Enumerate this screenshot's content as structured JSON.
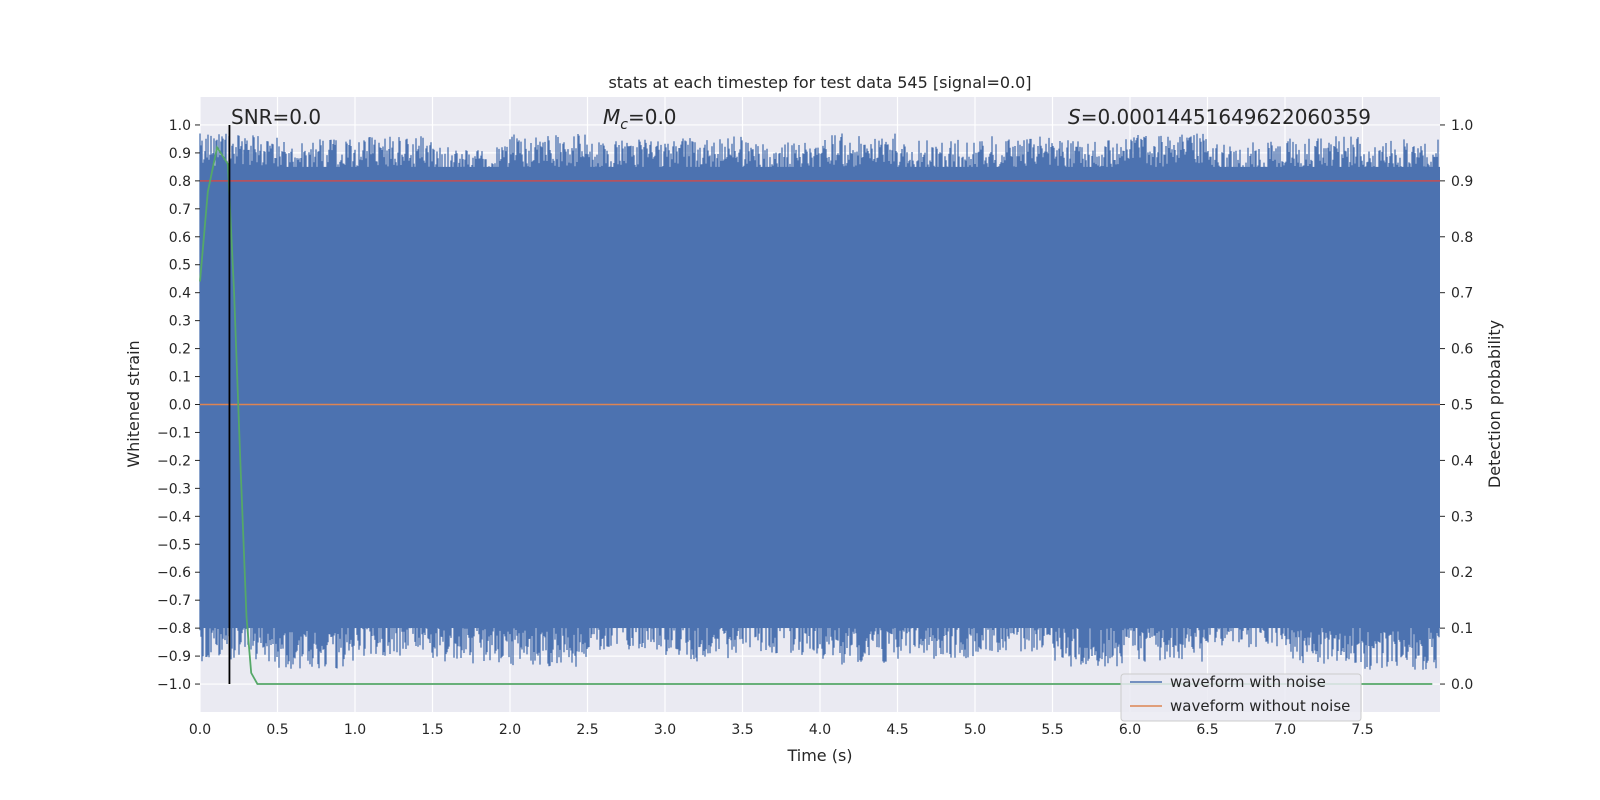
{
  "chart_data": {
    "type": "line",
    "title": "stats at each timestep for test data 545 [signal=0.0]",
    "xlabel": "Time (s)",
    "ylabel": "Whitened strain",
    "y2label": "Detection probability",
    "xlim": [
      0.0,
      8.0
    ],
    "ylim": [
      -1.1,
      1.1
    ],
    "y2lim": [
      -0.05,
      1.05
    ],
    "x_ticks": [
      0.0,
      0.5,
      1.0,
      1.5,
      2.0,
      2.5,
      3.0,
      3.5,
      4.0,
      4.5,
      5.0,
      5.5,
      6.0,
      6.5,
      7.0,
      7.5
    ],
    "x_tick_labels": [
      "0.0",
      "0.5",
      "1.0",
      "1.5",
      "2.0",
      "2.5",
      "3.0",
      "3.5",
      "4.0",
      "4.5",
      "5.0",
      "5.5",
      "6.0",
      "6.5",
      "7.0",
      "7.5"
    ],
    "y_ticks": [
      1.0,
      0.9,
      0.8,
      0.7,
      0.6,
      0.5,
      0.4,
      0.3,
      0.2,
      0.1,
      0.0,
      -0.1,
      -0.2,
      -0.3,
      -0.4,
      -0.5,
      -0.6,
      -0.7,
      -0.8,
      -0.9,
      -1.0
    ],
    "y_tick_labels": [
      "1.0",
      "0.9",
      "0.8",
      "0.7",
      "0.6",
      "0.5",
      "0.4",
      "0.3",
      "0.2",
      "0.1",
      "0.0",
      "−0.1",
      "−0.2",
      "−0.3",
      "−0.4",
      "−0.5",
      "−0.6",
      "−0.7",
      "−0.8",
      "−0.9",
      "−1.0"
    ],
    "y2_ticks": [
      1.0,
      0.9,
      0.8,
      0.7,
      0.6,
      0.5,
      0.4,
      0.3,
      0.2,
      0.1,
      0.0
    ],
    "y2_tick_labels": [
      "1.0",
      "0.9",
      "0.8",
      "0.7",
      "0.6",
      "0.5",
      "0.4",
      "0.3",
      "0.2",
      "0.1",
      "0.0"
    ],
    "grid": true,
    "series": [
      {
        "name": "waveform with noise",
        "color": "#4c72b0",
        "axis": "left",
        "description_values": "dense noise filling approx. -1.0 to 1.0",
        "envelope_upper": [
          0.97,
          0.95,
          0.96,
          0.93,
          0.97,
          0.95,
          0.96,
          0.94,
          0.97,
          0.95,
          0.96,
          0.95,
          0.97,
          0.94,
          0.96,
          0.95
        ],
        "envelope_lower": [
          -0.92,
          -0.95,
          -0.9,
          -0.93,
          -0.94,
          -0.88,
          -0.92,
          -0.9,
          -0.93,
          -0.91,
          -0.89,
          -0.94,
          -0.92,
          -0.87,
          -0.93,
          -0.95
        ]
      },
      {
        "name": "waveform without noise",
        "color": "#dd8452",
        "axis": "left",
        "x": [
          0.0,
          8.0
        ],
        "values": [
          0.0,
          0.0
        ]
      },
      {
        "name": "detection probability",
        "color": "#55a868",
        "axis": "right",
        "x": [
          0.0,
          0.05,
          0.11,
          0.18,
          0.22,
          0.26,
          0.3,
          0.33,
          0.37,
          0.5,
          1.0,
          2.0,
          3.0,
          4.0,
          5.0,
          6.0,
          7.0,
          7.95
        ],
        "values": [
          0.72,
          0.88,
          0.96,
          0.93,
          0.7,
          0.4,
          0.12,
          0.02,
          0.0,
          0.0,
          0.0,
          0.0,
          0.0,
          0.0,
          0.0,
          0.0,
          0.0,
          0.0
        ]
      },
      {
        "name": "threshold",
        "color": "#c44e52",
        "axis": "right",
        "x": [
          0.0,
          8.0
        ],
        "values": [
          0.9,
          0.9
        ]
      }
    ],
    "vertical_marker": {
      "x": 0.19,
      "color": "#000000"
    },
    "annotations": {
      "snr_label": "SNR=0.0",
      "mc_symbol": "M",
      "mc_subscript": "c",
      "mc_value": "=0.0",
      "s_symbol": "S",
      "s_value": "=0.00014451649622060359"
    },
    "legend": {
      "placement": "bottom-right",
      "entries": [
        "waveform with noise",
        "waveform without noise"
      ]
    }
  }
}
